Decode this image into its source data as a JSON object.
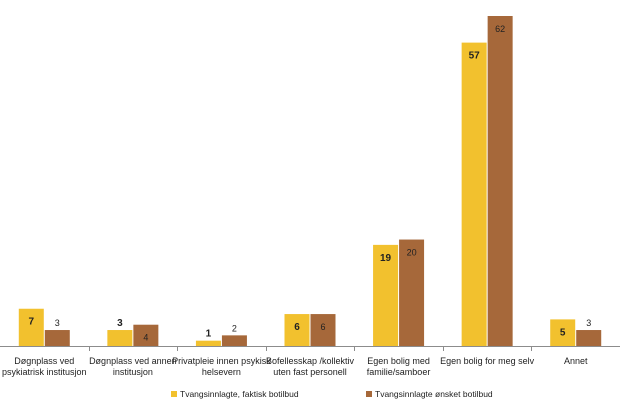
{
  "chart_data": {
    "type": "bar",
    "title": "",
    "xlabel": "",
    "ylabel": "",
    "grid": false,
    "legend_position": "bottom",
    "ylim": [
      0,
      62
    ],
    "categories": [
      [
        "Døgnplass ved",
        "psykiatrisk institusjon"
      ],
      [
        "Døgnplass ved annen",
        "institusjon"
      ],
      [
        "Privatpleie innen psykisk",
        "helsevern"
      ],
      [
        "Bofellesskap /kollektiv",
        "uten fast personell"
      ],
      [
        "Egen bolig med",
        "familie/samboer"
      ],
      [
        "Egen bolig for meg selv"
      ],
      [
        "Annet"
      ]
    ],
    "series": [
      {
        "name": "Tvangsinnlagte, faktisk botilbud",
        "color": "#f2c12e",
        "values": [
          7,
          3,
          1,
          6,
          19,
          57,
          5
        ]
      },
      {
        "name": "Tvangsinnlagte ønsket botilbud",
        "color": "#a6683a",
        "values": [
          3,
          4,
          2,
          6,
          20,
          62,
          3
        ]
      }
    ]
  }
}
